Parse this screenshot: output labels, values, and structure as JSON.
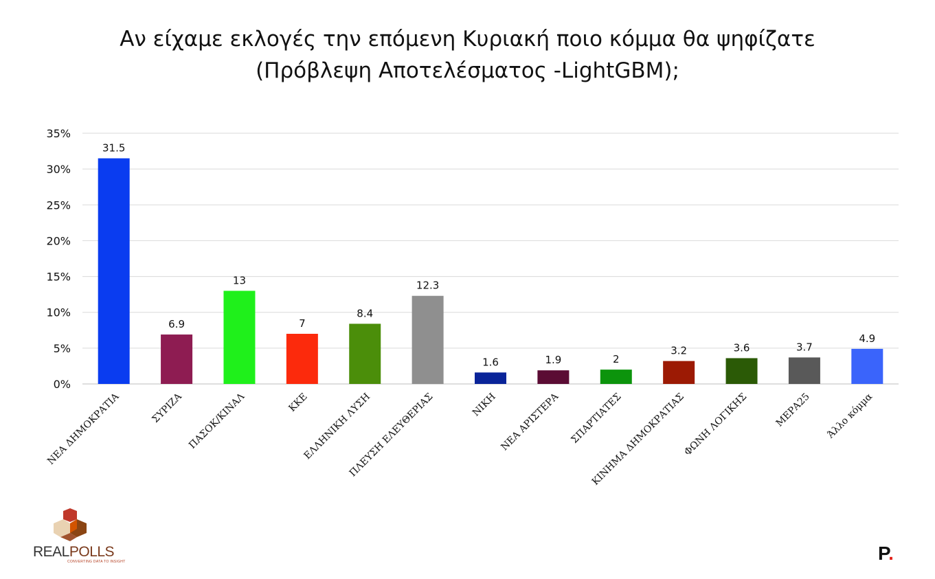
{
  "title": {
    "line1": "Αν είχαμε εκλογές την επόμενη Κυριακή ποιο κόμμα θα ψηφίζατε",
    "line2": "(Πρόβλεψη Αποτελέσματος -LightGBM);"
  },
  "chart_data": {
    "type": "bar",
    "categories": [
      "ΝΕΑ ΔΗΜΟΚΡΑΤΙΑ",
      "ΣΥΡΙΖΑ",
      "ΠΑΣΟΚ/ΚΙΝΑΛ",
      "ΚΚΕ",
      "ΕΛΛΗΝΙΚΗ ΛΥΣΗ",
      "ΠΛΕΥΣΗ ΕΛΕΥΘΕΡΙΑΣ",
      "ΝΙΚΗ",
      "ΝΕΑ ΑΡΙΣΤΕΡΑ",
      "ΣΠΑΡΤΙΑΤΕΣ",
      "ΚΙΝΗΜΑ ΔΗΜΟΚΡΑΤΙΑΣ",
      "ΦΩΝΗ ΛΟΓΙΚΗΣ",
      "ΜΕΡΑ25",
      "Άλλο κόμμα"
    ],
    "values": [
      31.5,
      6.9,
      13,
      7,
      8.4,
      12.3,
      1.6,
      1.9,
      2,
      3.2,
      3.6,
      3.7,
      4.9
    ],
    "value_labels": [
      "31.5",
      "6.9",
      "13",
      "7",
      "8.4",
      "12.3",
      "1.6",
      "1.9",
      "2",
      "3.2",
      "3.6",
      "3.7",
      "4.9"
    ],
    "colors": [
      "#0a3cf0",
      "#8e1c52",
      "#1ff01b",
      "#fc2a0c",
      "#4b8e0a",
      "#8f8f8f",
      "#0a2499",
      "#5b0c34",
      "#0c940c",
      "#9c1a04",
      "#2b5a06",
      "#595959",
      "#3a64fb"
    ],
    "yticks": [
      "0%",
      "5%",
      "10%",
      "15%",
      "20%",
      "25%",
      "30%",
      "35%"
    ],
    "ylim": [
      0,
      35
    ],
    "grid": true,
    "xlabel": "",
    "ylabel": ""
  },
  "logos": {
    "realpolls_real": "REAL",
    "realpolls_polls": "POLLS",
    "realpolls_tagline": "CONVERTING DATA TO INSIGHT",
    "p_letter": "P",
    "p_dot": "."
  }
}
